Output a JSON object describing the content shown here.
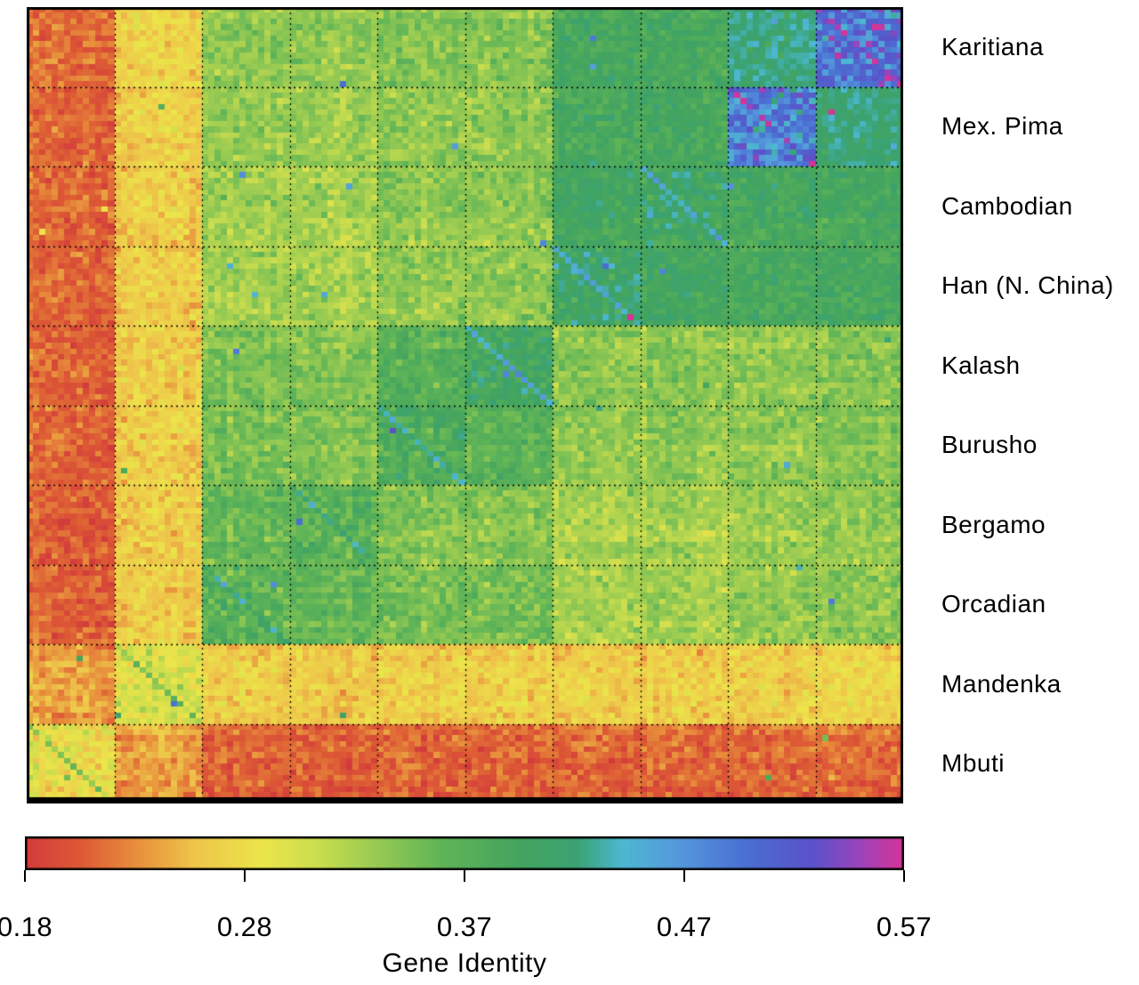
{
  "chart_data": {
    "type": "heatmap",
    "title": "",
    "populations": [
      "Karitiana",
      "Mex. Pima",
      "Cambodian",
      "Han (N. China)",
      "Kalash",
      "Burusho",
      "Bergamo",
      "Orcadian",
      "Mandenka",
      "Mbuti"
    ],
    "row_order_top_to_bottom": [
      "Karitiana",
      "Mex. Pima",
      "Cambodian",
      "Han (N. China)",
      "Kalash",
      "Burusho",
      "Bergamo",
      "Orcadian",
      "Mandenka",
      "Mbuti"
    ],
    "column_order_left_to_right": [
      "Mbuti",
      "Mandenka",
      "Orcadian",
      "Bergamo",
      "Burusho",
      "Kalash",
      "Han (N. China)",
      "Cambodian",
      "Mex. Pima",
      "Karitiana"
    ],
    "individuals_per_population": 14,
    "block_mean_gene_identity": {
      "rows": [
        "Karitiana",
        "Mex. Pima",
        "Cambodian",
        "Han (N. China)",
        "Kalash",
        "Burusho",
        "Bergamo",
        "Orcadian",
        "Mandenka",
        "Mbuti"
      ],
      "matrix": [
        [
          0.505,
          0.425,
          0.395,
          0.395,
          0.345,
          0.345,
          0.34,
          0.34,
          0.27,
          0.215
        ],
        [
          0.425,
          0.49,
          0.395,
          0.393,
          0.34,
          0.34,
          0.335,
          0.335,
          0.265,
          0.213
        ],
        [
          0.395,
          0.395,
          0.405,
          0.4,
          0.34,
          0.338,
          0.328,
          0.328,
          0.262,
          0.213
        ],
        [
          0.395,
          0.393,
          0.4,
          0.41,
          0.34,
          0.337,
          0.328,
          0.326,
          0.262,
          0.212
        ],
        [
          0.345,
          0.34,
          0.34,
          0.34,
          0.4,
          0.37,
          0.345,
          0.348,
          0.262,
          0.21
        ],
        [
          0.345,
          0.34,
          0.338,
          0.337,
          0.37,
          0.38,
          0.345,
          0.348,
          0.262,
          0.21
        ],
        [
          0.34,
          0.335,
          0.328,
          0.328,
          0.345,
          0.345,
          0.372,
          0.362,
          0.26,
          0.208
        ],
        [
          0.34,
          0.335,
          0.328,
          0.326,
          0.348,
          0.348,
          0.362,
          0.368,
          0.26,
          0.208
        ],
        [
          0.27,
          0.265,
          0.262,
          0.262,
          0.262,
          0.262,
          0.26,
          0.26,
          0.295,
          0.238
        ],
        [
          0.215,
          0.213,
          0.213,
          0.212,
          0.21,
          0.21,
          0.208,
          0.208,
          0.238,
          0.285
        ]
      ]
    },
    "colorbar": {
      "label": "Gene Identity",
      "min": 0.18,
      "max": 0.57,
      "tick_labels": [
        "0.18",
        "0.28",
        "0.37",
        "0.47",
        "0.57"
      ],
      "color_stops": [
        {
          "v": 0.18,
          "c": "#d23b3b"
        },
        {
          "v": 0.205,
          "c": "#dd5a35"
        },
        {
          "v": 0.23,
          "c": "#e8903c"
        },
        {
          "v": 0.255,
          "c": "#eec44a"
        },
        {
          "v": 0.285,
          "c": "#ece54a"
        },
        {
          "v": 0.31,
          "c": "#cadd4e"
        },
        {
          "v": 0.335,
          "c": "#99cb52"
        },
        {
          "v": 0.365,
          "c": "#5fb457"
        },
        {
          "v": 0.4,
          "c": "#43a45f"
        },
        {
          "v": 0.425,
          "c": "#3aa273"
        },
        {
          "v": 0.445,
          "c": "#4cb8d0"
        },
        {
          "v": 0.47,
          "c": "#5598dc"
        },
        {
          "v": 0.5,
          "c": "#4a6fd2"
        },
        {
          "v": 0.53,
          "c": "#5b51c8"
        },
        {
          "v": 0.55,
          "c": "#9a44bc"
        },
        {
          "v": 0.57,
          "c": "#d63397"
        }
      ]
    },
    "render": {
      "seed": 7,
      "noise_sd": 0.012,
      "self_noise_sd": 0.016,
      "high_variance_populations": [
        "Karitiana",
        "Mex. Pima"
      ],
      "high_variance_sd": 0.028,
      "individual_amp": 0.012,
      "outlier_prob": 0.002,
      "diag_boost": 0.05
    }
  }
}
